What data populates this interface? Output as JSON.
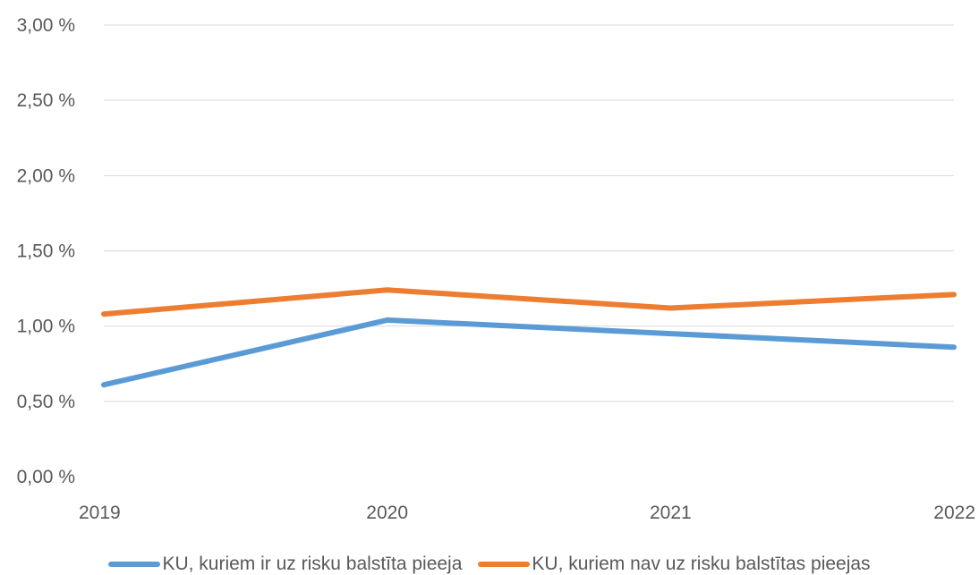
{
  "chart_data": {
    "type": "line",
    "title": "",
    "xlabel": "",
    "ylabel": "",
    "x": [
      "2019",
      "2020",
      "2021",
      "2022"
    ],
    "ylim": [
      0,
      3
    ],
    "yticks": [
      "0,00 %",
      "0,50 %",
      "1,00 %",
      "1,50 %",
      "2,00 %",
      "2,50 %",
      "3,00 %"
    ],
    "grid": true,
    "legend_position": "bottom",
    "series": [
      {
        "name": "KU, kuriem ir uz risku balstīta pieeja",
        "color": "#5b9bd5",
        "values": [
          0.61,
          1.04,
          0.95,
          0.86
        ]
      },
      {
        "name": "KU, kuriem nav uz risku balstītas pieejas",
        "color": "#ed7d31",
        "values": [
          1.08,
          1.24,
          1.12,
          1.21
        ]
      }
    ]
  }
}
